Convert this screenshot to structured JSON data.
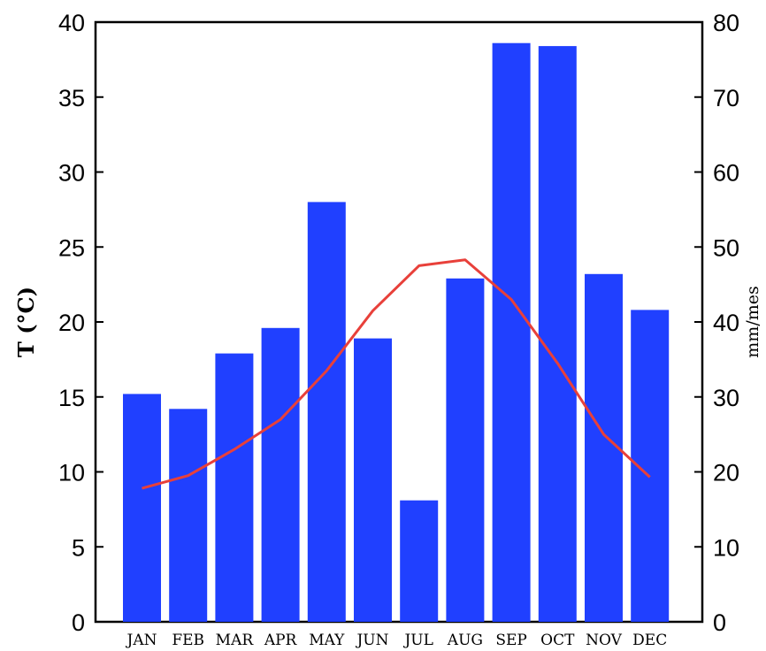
{
  "chart_data": {
    "type": "bar",
    "categories": [
      "JAN",
      "FEB",
      "MAR",
      "APR",
      "MAY",
      "JUN",
      "JUL",
      "AUG",
      "SEP",
      "OCT",
      "NOV",
      "DEC"
    ],
    "series": [
      {
        "kind": "bar",
        "axis": "left",
        "color": "#2040ff",
        "values": [
          15.2,
          14.2,
          17.9,
          19.6,
          28.0,
          18.9,
          8.1,
          22.9,
          38.6,
          38.4,
          23.2,
          20.8
        ]
      },
      {
        "kind": "line",
        "axis": "right",
        "color": "#e8403a",
        "values": [
          17.8,
          19.5,
          23.0,
          27.0,
          33.5,
          41.5,
          47.5,
          48.3,
          43.0,
          34.5,
          25.0,
          19.3
        ]
      }
    ],
    "ylabel_left": "T (°C)",
    "ylabel_right": "mm/mes",
    "ylim_left": [
      0,
      40
    ],
    "ylim_right": [
      0,
      80
    ],
    "yticks_left": [
      0,
      5,
      10,
      15,
      20,
      25,
      30,
      35,
      40
    ],
    "yticks_right": [
      0,
      10,
      20,
      30,
      40,
      50,
      60,
      70,
      80
    ],
    "grid": false,
    "legend": "none"
  }
}
